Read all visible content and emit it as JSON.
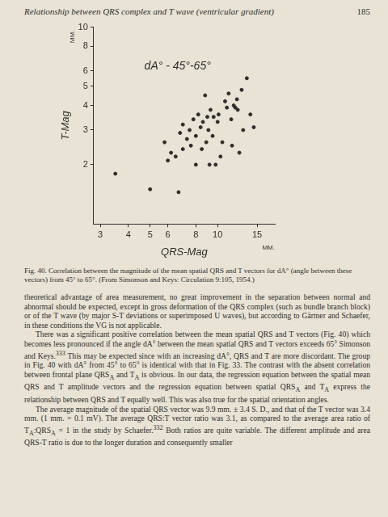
{
  "page": {
    "header": "Relationship between QRS complex and T wave (ventricular gradient)",
    "page_number": "185",
    "caption": "Fig. 40. Correlation between the magnitude of the mean spatial QRS and T vectors for dA° (angle between these vectors) from 45° to 65°. (From Simonson and Keys: Circulation 9:105, 1954.)",
    "paragraphs": [
      "theoretical advantage of area measurement, no great improvement in the separation between normal and abnormal should be expected, except in gross deformation of the QRS complex (such as bundle branch block) or of the T wave (by major S-T deviations or superimposed U waves), but according to Gärtner and Schaefer, in these conditions the VG is not applicable.",
      "There was a significant positive correlation between the mean spatial QRS and T vectors (Fig. 40) which becomes less pronounced if the angle dA° between the mean spatial QRS and T vectors exceeds 65° Simonson and Keys.<sup>333</sup> This may be expected since with an increasing dA°, QRS and T are more discordant. The group in Fig. 40 with dA° from 45° to 65° is identical with that in Fig. 33. The contrast with the absent correlation between frontal plane QRS<sub>A</sub> and T<sub>A</sub> is obvious. In our data, the regression equation between the spatial mean QRS and T amplitude vectors and the regression equation between spatial QRS<sub>A</sub> and T<sub>A</sub> express the relationship between QRS and T equally well. This was also true for the spatial orientation angles.",
      "The average magnitude of the spatial QRS vector was 9.9 mm. ± 3.4 S. D., and that of the T vector was 3.4 mm. (1 mm. = 0.1 mV). The average QRS:T vector ratio was 3.1, as compared to the average area ratio of T<sub>A</sub>:QRS<sub>A</sub> = 1 in the study by Schaefer.<sup>332</sup> Both ratios are quite variable. The different amplitude and area QRS-T ratio is due to the longer duration and consequently smaller"
    ]
  },
  "chart_data": {
    "type": "scatter",
    "x_label": "QRS-Mag",
    "y_label": "T-Mag",
    "annotations": [
      "dA° - 45°-65°",
      "MM.",
      "MM."
    ],
    "log": true,
    "grid": false,
    "color": "#2e2e2e",
    "marker": "circle",
    "xlim": [
      2.8,
      18
    ],
    "xticks": [
      3,
      4,
      5,
      6,
      8,
      10,
      15
    ],
    "ylim": [
      1,
      10
    ],
    "yticks": [
      2,
      3,
      4,
      5,
      6,
      8,
      10
    ],
    "x": [
      3.5,
      5,
      5.8,
      6,
      6.2,
      6.5,
      6.7,
      6.8,
      7,
      7,
      7.3,
      7.5,
      7.6,
      7.8,
      8,
      8,
      8.2,
      8.4,
      8.5,
      8.6,
      8.8,
      8.9,
      9,
      9.1,
      9.2,
      9.3,
      9.5,
      9.6,
      9.8,
      10,
      10.1,
      10.3,
      10.5,
      10.8,
      11,
      11.2,
      11.5,
      11.6,
      11.8,
      12,
      12.2,
      12.3,
      12.5,
      12.8,
      13,
      13.5,
      14,
      14.5
    ],
    "values": [
      1.8,
      1.5,
      2.6,
      2.1,
      2.3,
      2.2,
      1.45,
      2.9,
      2.4,
      3.2,
      2.7,
      3.0,
      2.5,
      3.4,
      2.0,
      2.8,
      3.6,
      3.1,
      2.4,
      3.3,
      4.5,
      2.6,
      3.5,
      3.0,
      2.0,
      3.8,
      2.8,
      3.5,
      2.0,
      3.3,
      3.6,
      2.2,
      2.6,
      4.2,
      3.9,
      4.6,
      3.4,
      2.5,
      4.0,
      3.9,
      4.3,
      3.8,
      2.3,
      4.8,
      3.0,
      5.5,
      3.6,
      3.1
    ]
  }
}
